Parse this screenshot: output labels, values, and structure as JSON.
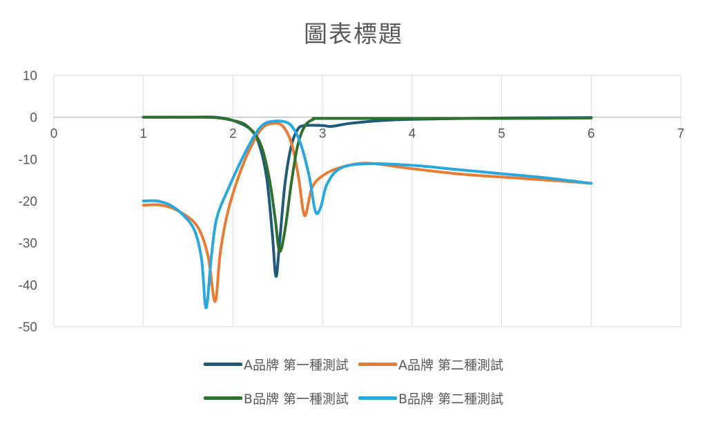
{
  "chart_data": {
    "type": "line",
    "title": "圖表標題",
    "xlabel": "",
    "ylabel": "",
    "xlim": [
      0,
      7
    ],
    "ylim": [
      -50,
      10
    ],
    "x_ticks": [
      0,
      1,
      2,
      3,
      4,
      5,
      6,
      7
    ],
    "y_ticks": [
      10,
      0,
      -10,
      -20,
      -30,
      -40,
      -50
    ],
    "grid": "vertical",
    "legend_position": "bottom",
    "series": [
      {
        "name": "A品牌 第一種測試",
        "color": "#1f5a7a",
        "points": [
          [
            1,
            0
          ],
          [
            1.5,
            0
          ],
          [
            1.8,
            0
          ],
          [
            2.0,
            -0.8
          ],
          [
            2.2,
            -3
          ],
          [
            2.3,
            -7
          ],
          [
            2.38,
            -15
          ],
          [
            2.44,
            -28
          ],
          [
            2.48,
            -38
          ],
          [
            2.52,
            -30
          ],
          [
            2.58,
            -16
          ],
          [
            2.65,
            -7
          ],
          [
            2.72,
            -3
          ],
          [
            2.8,
            -2
          ],
          [
            3.0,
            -2
          ],
          [
            3.1,
            -2.2
          ],
          [
            3.3,
            -1.5
          ],
          [
            3.6,
            -0.9
          ],
          [
            4.0,
            -0.5
          ],
          [
            5.0,
            -0.2
          ],
          [
            6.0,
            -0.1
          ]
        ]
      },
      {
        "name": "A品牌 第二種測試",
        "color": "#e97c35",
        "points": [
          [
            1,
            -21
          ],
          [
            1.2,
            -21
          ],
          [
            1.4,
            -22.5
          ],
          [
            1.6,
            -26
          ],
          [
            1.72,
            -33
          ],
          [
            1.8,
            -44
          ],
          [
            1.86,
            -32
          ],
          [
            1.95,
            -22
          ],
          [
            2.1,
            -12
          ],
          [
            2.25,
            -5
          ],
          [
            2.35,
            -2.2
          ],
          [
            2.45,
            -1.5
          ],
          [
            2.55,
            -2
          ],
          [
            2.65,
            -6
          ],
          [
            2.73,
            -14
          ],
          [
            2.8,
            -23.5
          ],
          [
            2.88,
            -17
          ],
          [
            3.0,
            -14
          ],
          [
            3.2,
            -12
          ],
          [
            3.5,
            -11
          ],
          [
            4.0,
            -12.3
          ],
          [
            4.5,
            -13.5
          ],
          [
            5.0,
            -14.3
          ],
          [
            5.5,
            -15
          ],
          [
            6.0,
            -15.8
          ]
        ]
      },
      {
        "name": "B品牌 第一種測試",
        "color": "#2e7030",
        "points": [
          [
            1,
            0
          ],
          [
            1.5,
            0
          ],
          [
            1.8,
            -0.1
          ],
          [
            2.0,
            -0.8
          ],
          [
            2.15,
            -2
          ],
          [
            2.3,
            -6
          ],
          [
            2.4,
            -14
          ],
          [
            2.47,
            -24
          ],
          [
            2.52,
            -32
          ],
          [
            2.58,
            -27
          ],
          [
            2.65,
            -16
          ],
          [
            2.72,
            -7
          ],
          [
            2.8,
            -2.2
          ],
          [
            2.9,
            -0.5
          ],
          [
            3.0,
            -0.3
          ],
          [
            4.0,
            -0.3
          ],
          [
            5.0,
            -0.3
          ],
          [
            6.0,
            -0.2
          ]
        ]
      },
      {
        "name": "B品牌 第二種測試",
        "color": "#29a8dd",
        "points": [
          [
            1,
            -20
          ],
          [
            1.15,
            -20
          ],
          [
            1.3,
            -21
          ],
          [
            1.45,
            -23.5
          ],
          [
            1.57,
            -27
          ],
          [
            1.65,
            -34
          ],
          [
            1.7,
            -45.5
          ],
          [
            1.76,
            -33
          ],
          [
            1.82,
            -24
          ],
          [
            1.95,
            -17
          ],
          [
            2.1,
            -10
          ],
          [
            2.25,
            -4
          ],
          [
            2.35,
            -1.6
          ],
          [
            2.45,
            -1
          ],
          [
            2.55,
            -1
          ],
          [
            2.65,
            -2
          ],
          [
            2.75,
            -6
          ],
          [
            2.85,
            -14
          ],
          [
            2.92,
            -22.5
          ],
          [
            2.98,
            -21.5
          ],
          [
            3.05,
            -16
          ],
          [
            3.2,
            -12.2
          ],
          [
            3.5,
            -11.1
          ],
          [
            4.0,
            -11.5
          ],
          [
            4.5,
            -12.5
          ],
          [
            5.0,
            -13.5
          ],
          [
            5.5,
            -14.5
          ],
          [
            6.0,
            -15.8
          ]
        ]
      }
    ]
  }
}
